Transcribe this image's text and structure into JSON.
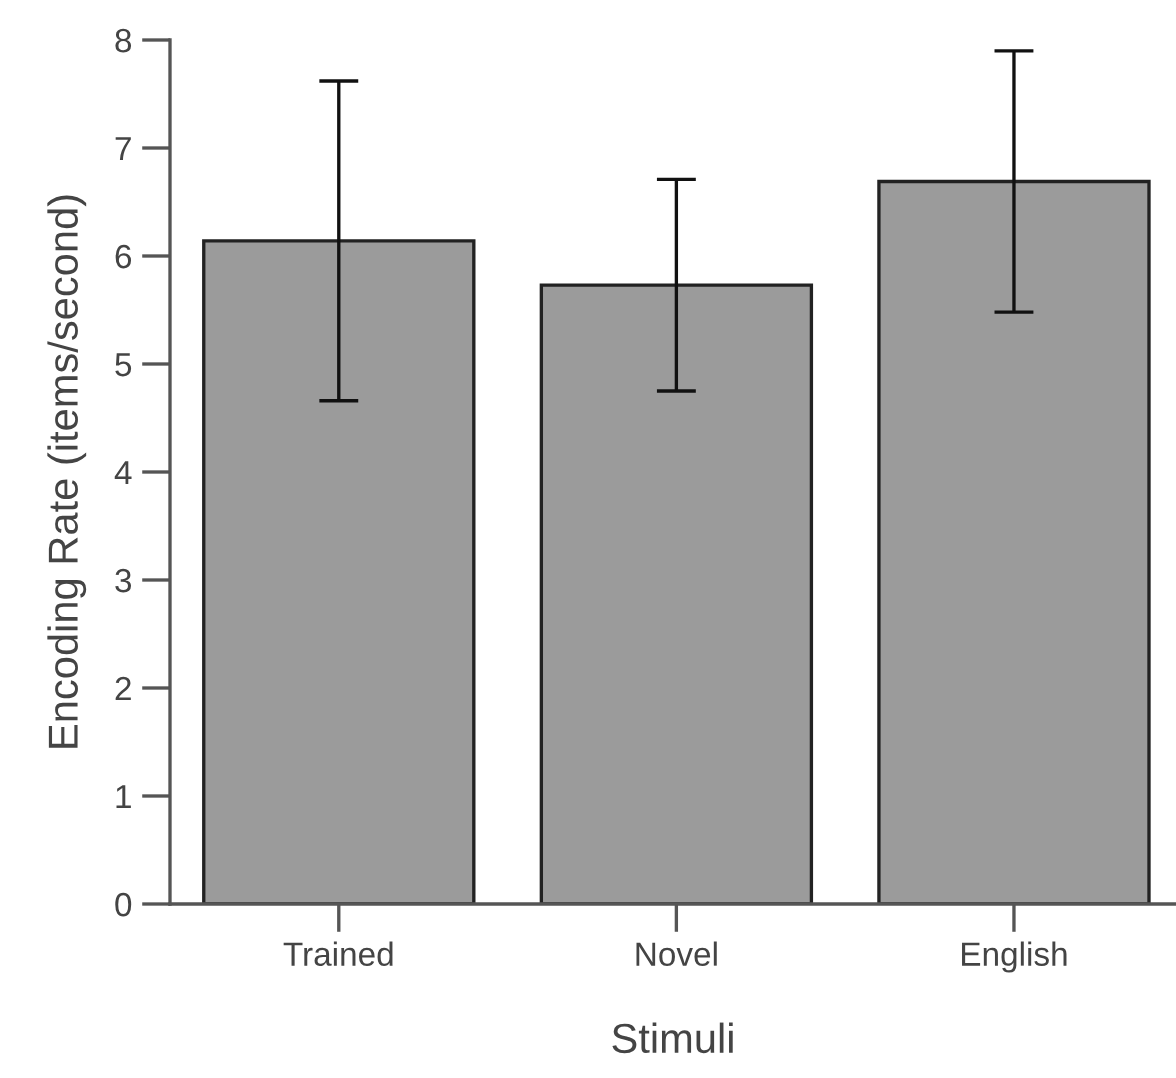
{
  "chart_data": {
    "type": "bar",
    "xlabel": "Stimuli",
    "ylabel": "Encoding Rate (items/second)",
    "categories": [
      "Trained",
      "Novel",
      "English"
    ],
    "values": [
      6.14,
      5.73,
      6.69
    ],
    "errors": [
      1.48,
      0.98,
      1.21
    ],
    "color": "#9b9b9b",
    "ylim": [
      0,
      8
    ],
    "yticks": [
      0,
      1,
      2,
      3,
      4,
      5,
      6,
      7,
      8
    ],
    "grid": false
  }
}
